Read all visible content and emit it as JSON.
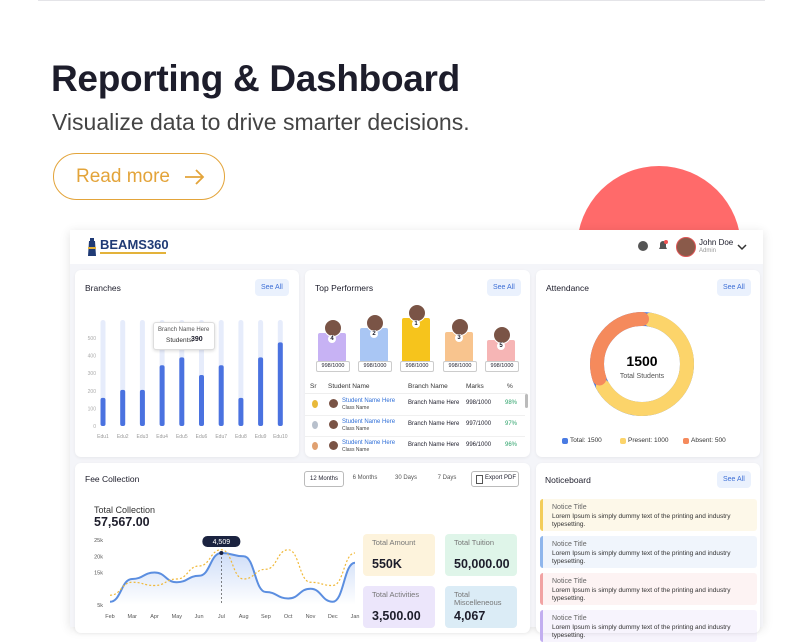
{
  "hero": {
    "title": "Reporting & Dashboard",
    "subtitle": "Visualize data to drive smarter decisions.",
    "button": "Read more"
  },
  "app": {
    "logo": "BEAMS360",
    "user": {
      "name": "John Doe",
      "role": "Admin"
    }
  },
  "branches": {
    "title": "Branches",
    "action": "See All",
    "categories": [
      "Edu1",
      "Edu2",
      "Edu3",
      "Edu4",
      "Edu5",
      "Edu6",
      "Edu7",
      "Edu8",
      "Edu9",
      "Edu10"
    ],
    "values": [
      160,
      205,
      205,
      345,
      390,
      290,
      345,
      160,
      390,
      475
    ],
    "color": "#4a72e0",
    "ylim": [
      0,
      500
    ],
    "yticks": [
      0,
      100,
      200,
      300,
      400,
      500
    ],
    "tooltip": {
      "title": "Branch Name Here",
      "key": "Students:",
      "value": 390
    }
  },
  "performers": {
    "title": "Top Performers",
    "action": "See All",
    "podium": [
      {
        "rank": 4,
        "score": "998/1000",
        "color": "#c7b2f4"
      },
      {
        "rank": 2,
        "score": "998/1000",
        "color": "#a9c6f4"
      },
      {
        "rank": 1,
        "score": "998/1000",
        "color": "#f6c41c"
      },
      {
        "rank": 3,
        "score": "998/1000",
        "color": "#f8c48e"
      },
      {
        "rank": 5,
        "score": "998/1000",
        "color": "#f6b5b5"
      }
    ],
    "columns": [
      "Sr",
      "Student Name",
      "Branch Name",
      "Marks",
      "%"
    ],
    "rows": [
      {
        "name": "Student Name Here",
        "class": "Class Name",
        "branch": "Branch Name Here",
        "marks": "998/1000",
        "percent": "98%"
      },
      {
        "name": "Student Name Here",
        "class": "Class Name",
        "branch": "Branch Name Here",
        "marks": "997/1000",
        "percent": "97%"
      },
      {
        "name": "Student Name Here",
        "class": "Class Name",
        "branch": "Branch Name Here",
        "marks": "996/1000",
        "percent": "96%"
      }
    ]
  },
  "attendance": {
    "title": "Attendance",
    "action": "See All",
    "total": 1500,
    "total_label": "Total Students",
    "legend": [
      {
        "label": "Total: 1500",
        "value": 1500,
        "color": "#4a7be3"
      },
      {
        "label": "Present: 1000",
        "value": 1000,
        "color": "#fcd46a"
      },
      {
        "label": "Absent: 500",
        "value": 500,
        "color": "#f58a5c"
      }
    ]
  },
  "fees": {
    "title": "Fee Collection",
    "tabs": [
      "12 Months",
      "6 Months",
      "30 Days",
      "7 Days"
    ],
    "export": "Export PDF",
    "total_label": "Total Collection",
    "total_value": "57,567.00",
    "chart": {
      "type": "line",
      "x": [
        "Feb",
        "Mar",
        "Apr",
        "May",
        "Jun",
        "Jul",
        "Aug",
        "Sep",
        "Oct",
        "Nov",
        "Dec",
        "Jan"
      ],
      "series": [
        {
          "color": "#5b8ee0",
          "values": [
            6000,
            13000,
            15000,
            12000,
            14000,
            21000,
            20000,
            9000,
            7000,
            10000,
            6000,
            18000
          ]
        },
        {
          "color": "#f0b93a",
          "values": [
            8000,
            12000,
            11000,
            13000,
            17000,
            22000,
            13000,
            16000,
            22000,
            12000,
            11000,
            21000
          ]
        }
      ],
      "ylim": [
        5000,
        25000
      ],
      "yticks": [
        {
          "value": 5000,
          "label": "5k"
        },
        {
          "value": 15000,
          "label": "15k"
        },
        {
          "value": 20000,
          "label": "20k"
        },
        {
          "value": 25000,
          "label": "25k"
        }
      ],
      "tooltip": "4,509"
    },
    "stats": [
      {
        "label": "Total Amount",
        "value": "550K",
        "color": "#fdf3dc"
      },
      {
        "label": "Total Tuition",
        "value": "50,000.00",
        "color": "#dff5e9"
      },
      {
        "label": "Total Activities",
        "value": "3,500.00",
        "color": "#ece6fb"
      },
      {
        "label": "Total Miscelleneous",
        "value": "4,067",
        "color": "#dbecf6"
      }
    ]
  },
  "notices": {
    "title": "Noticeboard",
    "action": "See All",
    "items": [
      {
        "title": "Notice Title",
        "text": "Lorem Ipsum is simply dummy text of the printing and  industry typesetting.",
        "color": "#f3cd5a"
      },
      {
        "title": "Notice Title",
        "text": "Lorem Ipsum is simply dummy text of the printing and  industry typesetting.",
        "color": "#8fb6ec"
      },
      {
        "title": "Notice Title",
        "text": "Lorem Ipsum is simply dummy text of the printing and  industry typesetting.",
        "color": "#f1a3a3"
      },
      {
        "title": "Notice Title",
        "text": "Lorem Ipsum is simply dummy text of the printing and  industry typesetting.",
        "color": "#c2aef0"
      }
    ]
  }
}
